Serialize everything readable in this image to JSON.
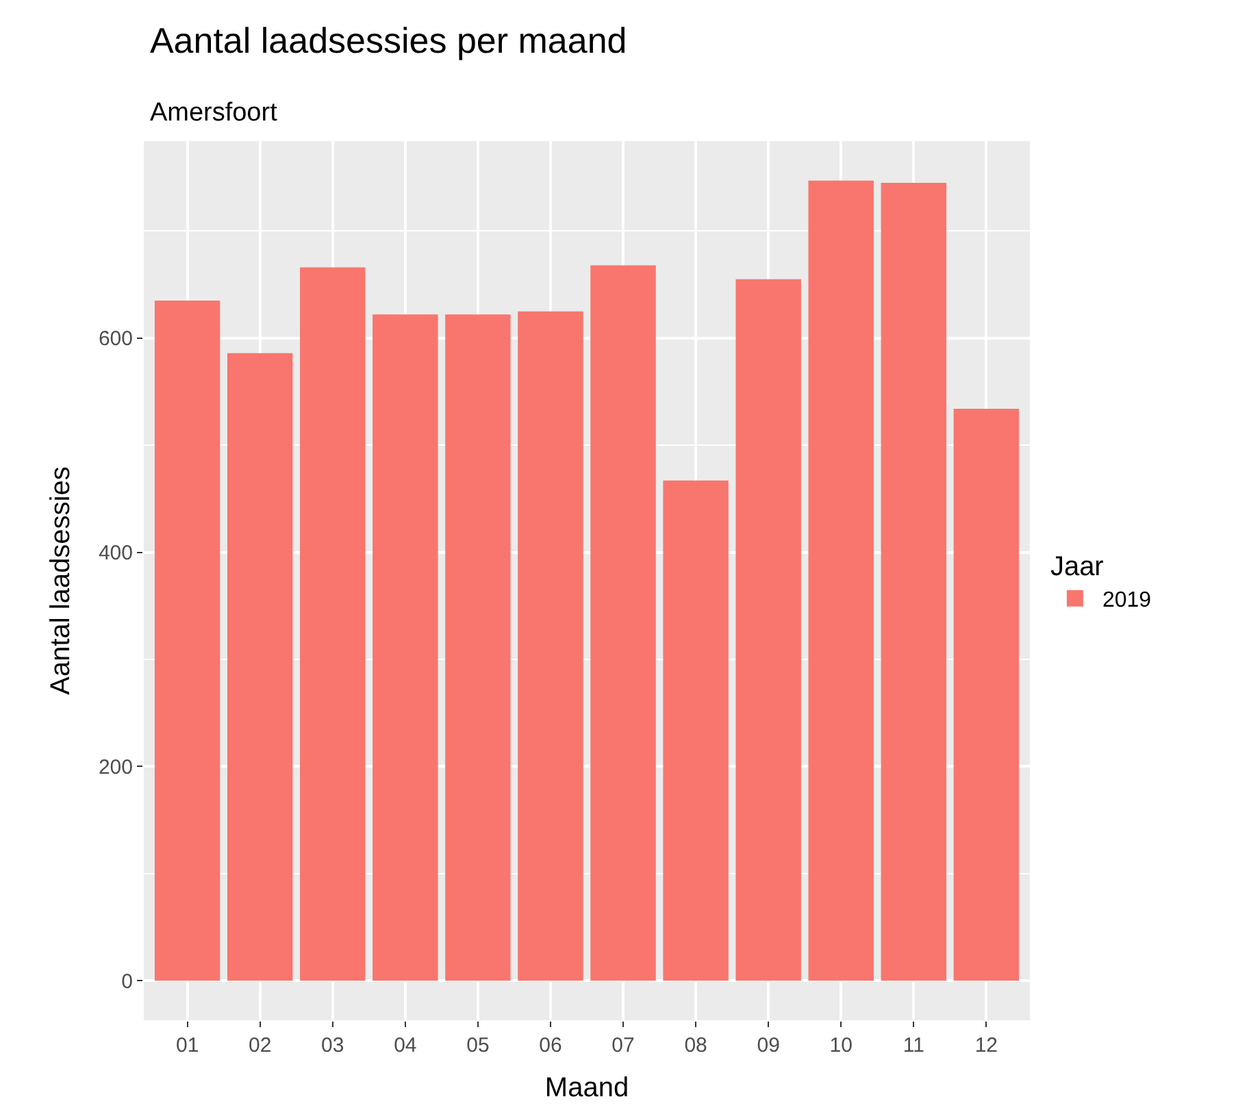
{
  "chart_data": {
    "type": "bar",
    "title": "Aantal laadsessies per maand",
    "subtitle": "Amersfoort",
    "xlabel": "Maand",
    "ylabel": "Aantal laadsessies",
    "legend_title": "Jaar",
    "categories": [
      "01",
      "02",
      "03",
      "04",
      "05",
      "06",
      "07",
      "08",
      "09",
      "10",
      "11",
      "12"
    ],
    "series": [
      {
        "name": "2019",
        "color": "#f8766d",
        "values": [
          635,
          586,
          666,
          622,
          622,
          625,
          668,
          467,
          655,
          747,
          745,
          534
        ]
      }
    ],
    "ylim": [
      -37,
      784
    ],
    "yticks": [
      0,
      200,
      400,
      600
    ],
    "grid": true,
    "legend": "right"
  }
}
